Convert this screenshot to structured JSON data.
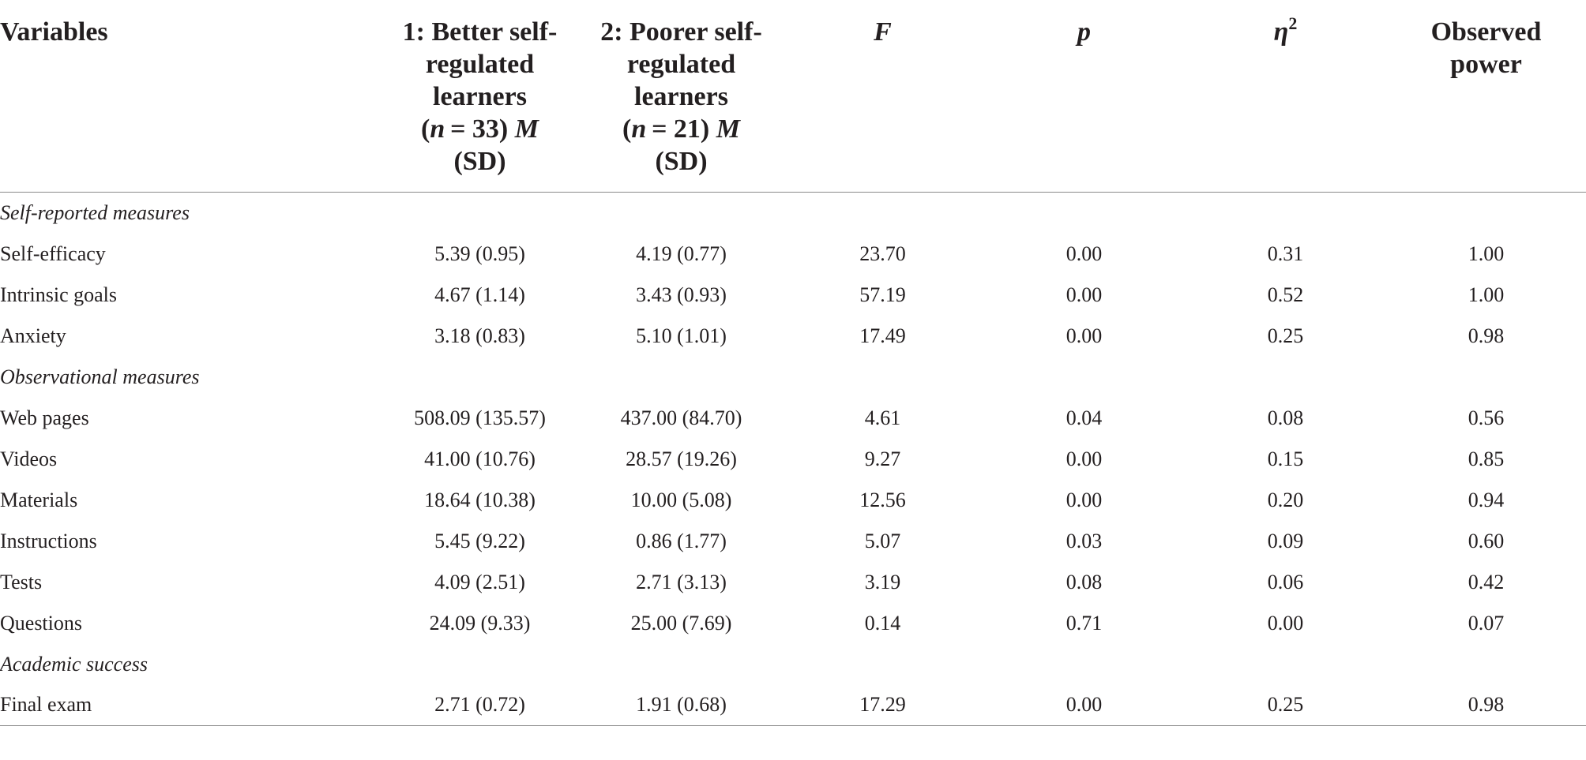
{
  "table": {
    "headers": {
      "variables": "Variables",
      "group1_line1": "1: Better self-",
      "group1_line2": "regulated",
      "group1_line3": "learners",
      "group1_n": "n",
      "group1_n_value": "= 33)",
      "group1_m": "M",
      "group1_sd": "(SD)",
      "group2_line1": "2: Poorer self-",
      "group2_line2": "regulated",
      "group2_line3": "learners",
      "group2_n": "n",
      "group2_n_value": "= 21)",
      "group2_m": "M",
      "group2_sd": "(SD)",
      "f": "F",
      "p": "p",
      "eta": "η",
      "eta_sup": "2",
      "power_line1": "Observed",
      "power_line2": "power"
    },
    "sections": [
      {
        "title": "Self-reported measures",
        "rows": [
          {
            "label": "Self-efficacy",
            "g1": "5.39 (0.95)",
            "g2": "4.19 (0.77)",
            "f": "23.70",
            "p": "0.00",
            "eta": "0.31",
            "power": "1.00"
          },
          {
            "label": "Intrinsic goals",
            "g1": "4.67 (1.14)",
            "g2": "3.43 (0.93)",
            "f": "57.19",
            "p": "0.00",
            "eta": "0.52",
            "power": "1.00"
          },
          {
            "label": "Anxiety",
            "g1": "3.18 (0.83)",
            "g2": "5.10 (1.01)",
            "f": "17.49",
            "p": "0.00",
            "eta": "0.25",
            "power": "0.98"
          }
        ]
      },
      {
        "title": "Observational measures",
        "rows": [
          {
            "label": "Web pages",
            "g1": "508.09 (135.57)",
            "g2": "437.00 (84.70)",
            "f": "4.61",
            "p": "0.04",
            "eta": "0.08",
            "power": "0.56"
          },
          {
            "label": "Videos",
            "g1": "41.00 (10.76)",
            "g2": "28.57 (19.26)",
            "f": "9.27",
            "p": "0.00",
            "eta": "0.15",
            "power": "0.85"
          },
          {
            "label": "Materials",
            "g1": "18.64 (10.38)",
            "g2": "10.00 (5.08)",
            "f": "12.56",
            "p": "0.00",
            "eta": "0.20",
            "power": "0.94"
          },
          {
            "label": "Instructions",
            "g1": "5.45 (9.22)",
            "g2": "0.86 (1.77)",
            "f": "5.07",
            "p": "0.03",
            "eta": "0.09",
            "power": "0.60"
          },
          {
            "label": "Tests",
            "g1": "4.09 (2.51)",
            "g2": "2.71 (3.13)",
            "f": "3.19",
            "p": "0.08",
            "eta": "0.06",
            "power": "0.42"
          },
          {
            "label": "Questions",
            "g1": "24.09 (9.33)",
            "g2": "25.00 (7.69)",
            "f": "0.14",
            "p": "0.71",
            "eta": "0.00",
            "power": "0.07"
          }
        ]
      },
      {
        "title": "Academic success",
        "rows": [
          {
            "label": "Final exam",
            "g1": "2.71 (0.72)",
            "g2": "1.91 (0.68)",
            "f": "17.29",
            "p": "0.00",
            "eta": "0.25",
            "power": "0.98"
          }
        ]
      }
    ]
  }
}
